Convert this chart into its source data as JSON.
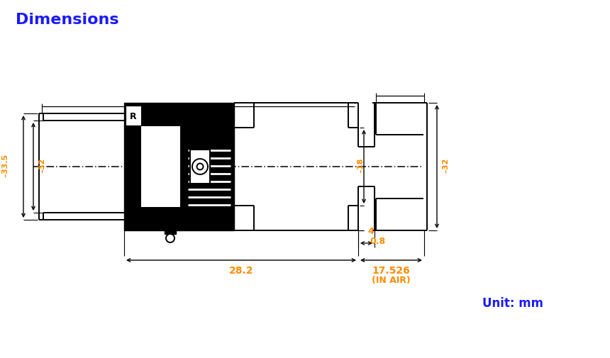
{
  "title": "Dimensions",
  "title_color": "#1a1aff",
  "title_fontsize": 16,
  "unit_text": "Unit: mm",
  "unit_color": "#1a1aff",
  "unit_fontsize": 12,
  "dim_color": "#ff8c00",
  "line_color": "#000000",
  "background_color": "#ffffff",
  "figsize": [
    8.6,
    5.06
  ],
  "dpi": 100,
  "dims": {
    "phi33_5": "̵33.5",
    "phi32_left": "̵32",
    "phi18": "̵18",
    "phi32_right": "̵32",
    "d28_2": "28.2",
    "d17_526": "17.526",
    "d_in_air": "(IN AIR)",
    "d0_8": "0.8",
    "d4": "4"
  }
}
